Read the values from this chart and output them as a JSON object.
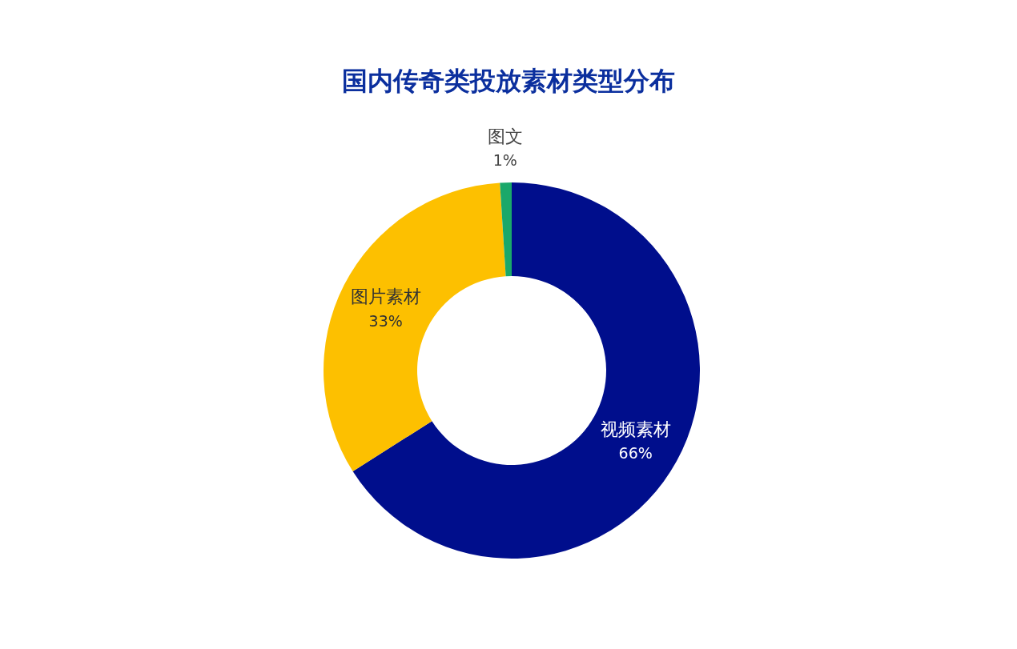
{
  "chart_data": {
    "type": "donut",
    "title": "国内传奇类投放素材类型分布",
    "categories": [
      "视频素材",
      "图片素材",
      "图文"
    ],
    "values": [
      66,
      33,
      1
    ],
    "colors": [
      "#000e8c",
      "#fdc000",
      "#1aa86a"
    ],
    "value_labels": [
      "66%",
      "33%",
      "1%"
    ],
    "legend": false
  }
}
